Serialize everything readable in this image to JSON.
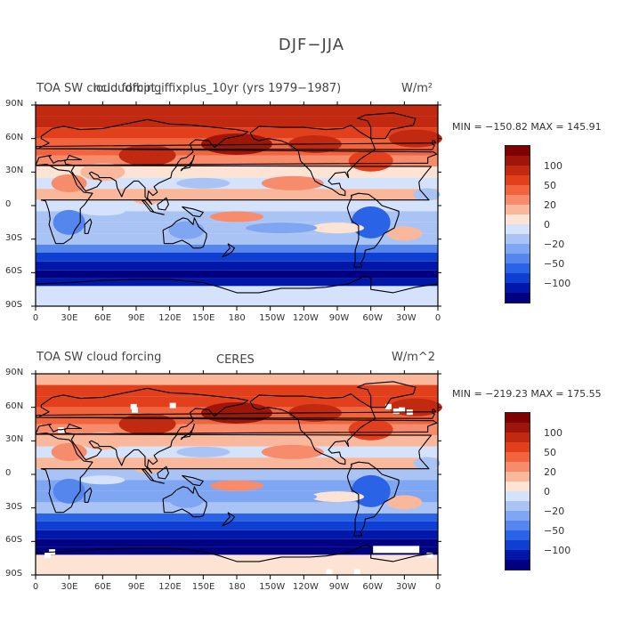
{
  "figure": {
    "title": "DJF−JJA"
  },
  "palette": [
    "#000080",
    "#0018aa",
    "#0e3fd2",
    "#2a63e6",
    "#5486ee",
    "#7ea6f2",
    "#aac3f5",
    "#d4e3fb",
    "#fde3d3",
    "#f9b79c",
    "#f68c6c",
    "#f2643e",
    "#e2401d",
    "#c12a10",
    "#9e160a",
    "#800000"
  ],
  "colorbar": {
    "labels": [
      "100",
      "50",
      "20",
      "0",
      "−20",
      "−50",
      "−100"
    ]
  },
  "axes": {
    "lat_labels": [
      "90N",
      "60N",
      "30N",
      "0",
      "30S",
      "60S",
      "90S"
    ],
    "lon_labels": [
      "0",
      "30E",
      "60E",
      "90E",
      "120E",
      "150E",
      "180",
      "150W",
      "120W",
      "90W",
      "60W",
      "30W",
      "0"
    ]
  },
  "panels": [
    {
      "left_title": "TOA SW cloud forcing",
      "overlap_title": "ncloudfbpt_iffixplus_10yr (yrs 1979−1987)",
      "units": "W/m²",
      "minmax": "MIN = −150.82  MAX = 145.91"
    },
    {
      "left_title": "TOA SW cloud forcing",
      "center_title": "CERES",
      "units": "W/m^2",
      "minmax": "MIN = −219.23  MAX = 175.55"
    }
  ],
  "map_data": {
    "type": "filled-contour-map",
    "variable": "TOA SW cloud forcing difference (DJF−JJA)",
    "lat_range": [
      -90,
      90
    ],
    "lon_range": [
      0,
      360
    ],
    "contour_levels": [
      -120,
      -100,
      -80,
      -60,
      -50,
      -40,
      -30,
      -20,
      -10,
      0,
      10,
      20,
      30,
      40,
      50,
      60,
      80,
      100,
      120
    ]
  }
}
